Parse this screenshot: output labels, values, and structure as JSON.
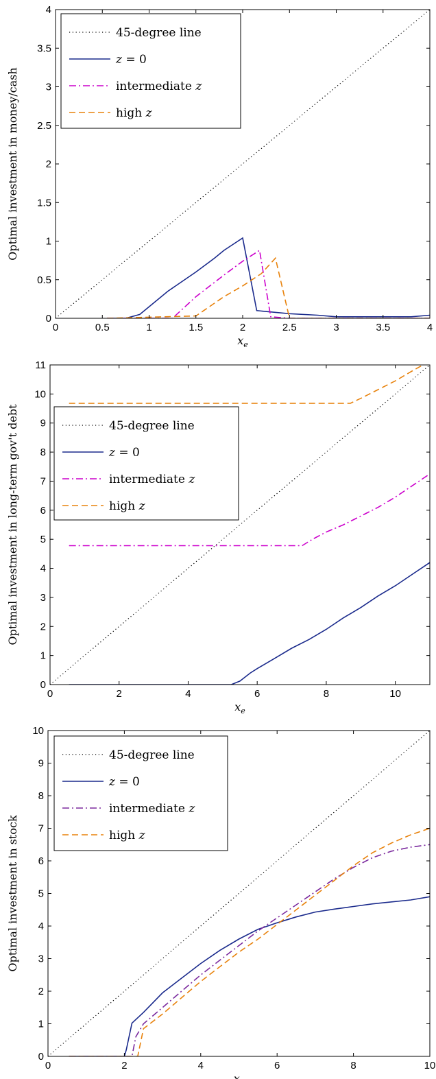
{
  "chart_data": [
    {
      "type": "line",
      "ylabel": "Optimal investment in money/cash",
      "xlabel_var": "x",
      "xlabel_sub": "e",
      "xlim": [
        0,
        4
      ],
      "ylim": [
        0,
        4
      ],
      "xticks": [
        0,
        0.5,
        1,
        1.5,
        2,
        2.5,
        3,
        3.5,
        4
      ],
      "xtick_labels": [
        "0",
        "0.5",
        "1",
        "1.5",
        "2",
        "2.5",
        "3",
        "3.5",
        "4"
      ],
      "yticks": [
        0,
        0.5,
        1,
        1.5,
        2,
        2.5,
        3,
        3.5,
        4
      ],
      "ytick_labels": [
        "0",
        "0.5",
        "1",
        "1.5",
        "2",
        "2.5",
        "3",
        "3.5",
        "4"
      ],
      "grid": false,
      "legend_position": "top-left",
      "series": [
        {
          "name": "45-degree line",
          "style": "dotted",
          "color": "#000000",
          "x": [
            0,
            4
          ],
          "y": [
            0,
            4
          ]
        },
        {
          "name": "z = 0",
          "name_parts": [
            "z",
            " = 0"
          ],
          "style": "solid",
          "color": "#1a2a8c",
          "x": [
            0.55,
            0.75,
            0.9,
            1.2,
            1.5,
            1.7,
            1.8,
            1.9,
            2.0,
            2.15,
            2.5,
            2.8,
            3.0,
            3.5,
            3.8,
            4.0
          ],
          "y": [
            0,
            0,
            0.05,
            0.35,
            0.6,
            0.78,
            0.88,
            0.96,
            1.04,
            0.1,
            0.06,
            0.04,
            0.02,
            0.02,
            0.02,
            0.04
          ]
        },
        {
          "name": "intermediate z",
          "name_parts": [
            "intermediate ",
            "z"
          ],
          "style": "dashdot",
          "color": "#cc00cc",
          "x": [
            0.55,
            1.25,
            1.5,
            1.8,
            2.0,
            2.18,
            2.3,
            2.5,
            4.0
          ],
          "y": [
            0,
            0,
            0.28,
            0.56,
            0.74,
            0.88,
            0.02,
            0,
            0
          ]
        },
        {
          "name": "high z",
          "name_parts": [
            "high ",
            "z"
          ],
          "style": "dashed",
          "color": "#e8820c",
          "x": [
            0.55,
            1.5,
            1.8,
            2.0,
            2.2,
            2.35,
            2.5,
            4.0
          ],
          "y": [
            0,
            0.03,
            0.28,
            0.42,
            0.58,
            0.78,
            0,
            0
          ]
        }
      ]
    },
    {
      "type": "line",
      "ylabel": "Optimal investment in long-term gov't debt",
      "xlabel_var": "x",
      "xlabel_sub": "e",
      "xlim": [
        0,
        11
      ],
      "ylim": [
        0,
        11
      ],
      "xticks": [
        0,
        2,
        4,
        6,
        8,
        10
      ],
      "xtick_labels": [
        "0",
        "2",
        "4",
        "6",
        "8",
        "10"
      ],
      "yticks": [
        0,
        1,
        2,
        3,
        4,
        5,
        6,
        7,
        8,
        9,
        10,
        11
      ],
      "ytick_labels": [
        "0",
        "1",
        "2",
        "3",
        "4",
        "5",
        "6",
        "7",
        "8",
        "9",
        "10",
        "11"
      ],
      "grid": false,
      "legend_position": "middle-left",
      "series": [
        {
          "name": "45-degree line",
          "style": "dotted",
          "color": "#000000",
          "x": [
            0,
            11
          ],
          "y": [
            0,
            11
          ]
        },
        {
          "name": "z = 0",
          "name_parts": [
            "z",
            " = 0"
          ],
          "style": "solid",
          "color": "#1a2a8c",
          "x": [
            0.55,
            5.25,
            5.5,
            5.8,
            6.0,
            6.5,
            7.0,
            7.5,
            8.0,
            8.5,
            9.0,
            9.5,
            10.0,
            10.5,
            11.0
          ],
          "y": [
            0,
            0,
            0.12,
            0.4,
            0.55,
            0.9,
            1.25,
            1.55,
            1.9,
            2.3,
            2.65,
            3.05,
            3.4,
            3.8,
            4.2
          ]
        },
        {
          "name": "intermediate z",
          "name_parts": [
            "intermediate ",
            "z"
          ],
          "style": "dashdot",
          "color": "#cc00cc",
          "x": [
            0.55,
            7.3,
            7.6,
            8.0,
            8.5,
            9.0,
            9.5,
            10.0,
            10.5,
            11.0
          ],
          "y": [
            4.78,
            4.78,
            5.0,
            5.25,
            5.5,
            5.8,
            6.1,
            6.45,
            6.85,
            7.25
          ]
        },
        {
          "name": "high z",
          "name_parts": [
            "high ",
            "z"
          ],
          "style": "dashed",
          "color": "#e8820c",
          "x": [
            0.55,
            8.7,
            9.0,
            9.5,
            10.0,
            10.5,
            10.8
          ],
          "y": [
            9.68,
            9.68,
            9.85,
            10.15,
            10.45,
            10.8,
            11.0
          ]
        }
      ]
    },
    {
      "type": "line",
      "ylabel": "Optimal investment in stock",
      "xlabel_var": "x",
      "xlabel_sub": "e",
      "xlim": [
        0,
        10
      ],
      "ylim": [
        0,
        10
      ],
      "xticks": [
        0,
        2,
        4,
        6,
        8,
        10
      ],
      "xtick_labels": [
        "0",
        "2",
        "4",
        "6",
        "8",
        "10"
      ],
      "yticks": [
        0,
        1,
        2,
        3,
        4,
        5,
        6,
        7,
        8,
        9,
        10
      ],
      "ytick_labels": [
        "0",
        "1",
        "2",
        "3",
        "4",
        "5",
        "6",
        "7",
        "8",
        "9",
        "10"
      ],
      "grid": false,
      "legend_position": "top-left",
      "series": [
        {
          "name": "45-degree line",
          "style": "dotted",
          "color": "#000000",
          "x": [
            0,
            10
          ],
          "y": [
            0,
            10
          ]
        },
        {
          "name": "z = 0",
          "name_parts": [
            "z",
            " = 0"
          ],
          "style": "solid",
          "color": "#1a2a8c",
          "x": [
            0.55,
            2.0,
            2.05,
            2.2,
            2.5,
            3.0,
            3.5,
            4.0,
            4.5,
            5.0,
            5.5,
            6.0,
            6.5,
            7.0,
            7.5,
            8.0,
            8.5,
            9.0,
            9.5,
            10.0
          ],
          "y": [
            0,
            0,
            0.2,
            1.02,
            1.35,
            1.95,
            2.4,
            2.85,
            3.25,
            3.6,
            3.9,
            4.1,
            4.28,
            4.43,
            4.52,
            4.6,
            4.68,
            4.74,
            4.8,
            4.9
          ]
        },
        {
          "name": "intermediate z",
          "name_parts": [
            "intermediate ",
            "z"
          ],
          "style": "dashdot",
          "color": "#7b2a9e",
          "x": [
            0.55,
            2.2,
            2.3,
            2.5,
            3.0,
            3.5,
            4.0,
            4.5,
            5.0,
            5.5,
            6.0,
            6.5,
            7.0,
            7.5,
            8.0,
            8.5,
            9.0,
            9.5,
            10.0
          ],
          "y": [
            0,
            0,
            0.6,
            1.0,
            1.5,
            2.0,
            2.5,
            2.95,
            3.4,
            3.85,
            4.25,
            4.65,
            5.05,
            5.45,
            5.8,
            6.1,
            6.3,
            6.42,
            6.5
          ]
        },
        {
          "name": "high z",
          "name_parts": [
            "high ",
            "z"
          ],
          "style": "dashed",
          "color": "#e8820c",
          "x": [
            0.55,
            2.35,
            2.5,
            3.0,
            3.5,
            4.0,
            4.5,
            5.0,
            5.5,
            6.0,
            6.5,
            7.0,
            7.5,
            8.0,
            8.5,
            9.0,
            9.5,
            10.0
          ],
          "y": [
            0,
            0,
            0.85,
            1.3,
            1.8,
            2.3,
            2.75,
            3.2,
            3.6,
            4.05,
            4.5,
            4.95,
            5.4,
            5.85,
            6.25,
            6.55,
            6.8,
            7.0
          ]
        }
      ]
    }
  ]
}
